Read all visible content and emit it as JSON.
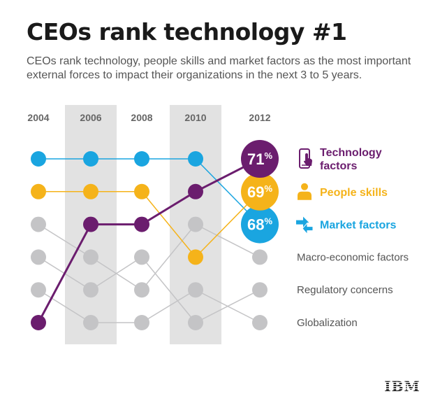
{
  "header": {
    "title": "CEOs rank technology #1",
    "subtitle": "CEOs rank technology, people skills and market factors as the most important external forces to impact their organizations in the next 3 to 5 years."
  },
  "logo": {
    "text": "IBM"
  },
  "colors": {
    "technology": "#6b1d6e",
    "people": "#f5b31a",
    "market": "#1aa5e0",
    "other": "#c4c4c6",
    "band": "#e2e2e2",
    "year_label": "#666666"
  },
  "chart_data": {
    "type": "line",
    "chart_subtype": "rank bump chart",
    "x": [
      "2004",
      "2006",
      "2008",
      "2010",
      "2012"
    ],
    "highlighted_bands": [
      "2006",
      "2010"
    ],
    "y_axis": "rank (1 = highest)",
    "series": [
      {
        "name": "Technology factors",
        "key": "technology",
        "icon": "smartphone-touch-icon",
        "highlight": true,
        "ranks": [
          6,
          3,
          3,
          2,
          1
        ],
        "value_2012": "71%"
      },
      {
        "name": "People skills",
        "key": "people",
        "icon": "person-icon",
        "highlight": true,
        "ranks": [
          2,
          2,
          2,
          4,
          2
        ],
        "value_2012": "69%"
      },
      {
        "name": "Market factors",
        "key": "market",
        "icon": "arrows-icon",
        "highlight": true,
        "ranks": [
          1,
          1,
          1,
          1,
          3
        ],
        "value_2012": "68%"
      },
      {
        "name": "Macro-economic factors",
        "key": "other",
        "highlight": false,
        "ranks": [
          3,
          4,
          5,
          3,
          4
        ]
      },
      {
        "name": "Regulatory concerns",
        "key": "other",
        "highlight": false,
        "ranks": [
          4,
          5,
          4,
          6,
          5
        ]
      },
      {
        "name": "Globalization",
        "key": "other",
        "highlight": false,
        "ranks": [
          5,
          6,
          6,
          5,
          6
        ]
      }
    ]
  }
}
